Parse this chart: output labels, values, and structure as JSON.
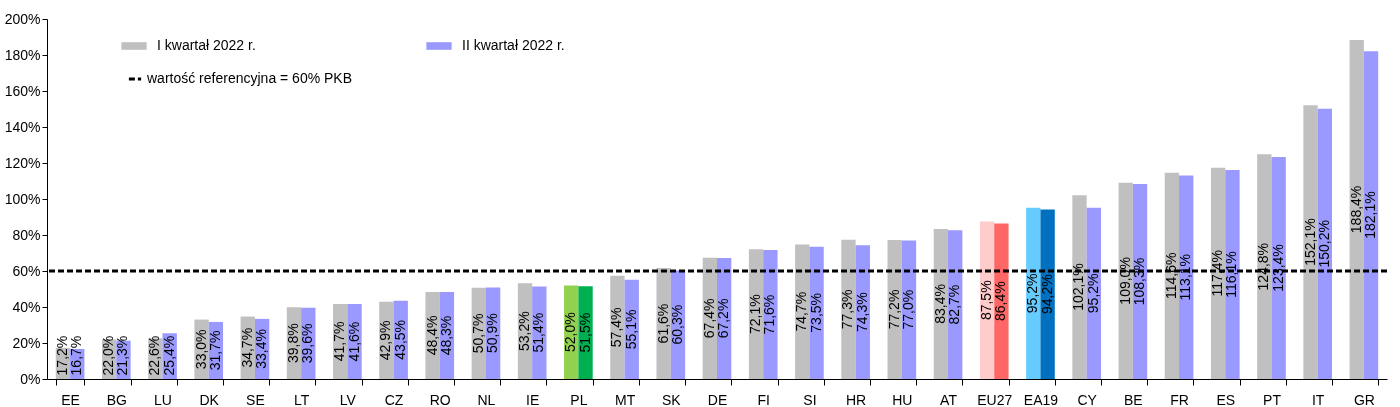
{
  "chart_data": {
    "type": "bar",
    "categories": [
      "EE",
      "BG",
      "LU",
      "DK",
      "SE",
      "LT",
      "LV",
      "CZ",
      "RO",
      "NL",
      "IE",
      "PL",
      "MT",
      "SK",
      "DE",
      "FI",
      "SI",
      "HR",
      "HU",
      "AT",
      "EU27",
      "EA19",
      "CY",
      "BE",
      "FR",
      "ES",
      "PT",
      "IT",
      "GR"
    ],
    "series": [
      {
        "name": "I kwartał 2022 r.",
        "color": "#c0c0c0",
        "colors": [
          "#c0c0c0",
          "#c0c0c0",
          "#c0c0c0",
          "#c0c0c0",
          "#c0c0c0",
          "#c0c0c0",
          "#c0c0c0",
          "#c0c0c0",
          "#c0c0c0",
          "#c0c0c0",
          "#c0c0c0",
          "#92d050",
          "#c0c0c0",
          "#c0c0c0",
          "#c0c0c0",
          "#c0c0c0",
          "#c0c0c0",
          "#c0c0c0",
          "#c0c0c0",
          "#c0c0c0",
          "#ffcccc",
          "#66ccff",
          "#c0c0c0",
          "#c0c0c0",
          "#c0c0c0",
          "#c0c0c0",
          "#c0c0c0",
          "#c0c0c0",
          "#c0c0c0"
        ],
        "values": [
          17.2,
          22.0,
          22.6,
          33.0,
          34.7,
          39.8,
          41.7,
          42.9,
          48.4,
          50.7,
          53.2,
          52.0,
          57.4,
          61.6,
          67.4,
          72.1,
          74.7,
          77.3,
          77.2,
          83.4,
          87.5,
          95.2,
          102.1,
          109.0,
          114.6,
          117.4,
          124.8,
          152.1,
          188.4
        ],
        "value_labels": [
          "17,2%",
          "22,0%",
          "22,6%",
          "33,0%",
          "34,7%",
          "39,8%",
          "41,7%",
          "42,9%",
          "48,4%",
          "50,7%",
          "53,2%",
          "52,0%",
          "57,4%",
          "61,6%",
          "67,4%",
          "72,1%",
          "74,7%",
          "77,3%",
          "77,2%",
          "83,4%",
          "87,5%",
          "95,2%",
          "102,1%",
          "109,0%",
          "114,6%",
          "117,4%",
          "124,8%",
          "152,1%",
          "188,4%"
        ]
      },
      {
        "name": "II kwartał 2022 r.",
        "color": "#9999ff",
        "colors": [
          "#9999ff",
          "#9999ff",
          "#9999ff",
          "#9999ff",
          "#9999ff",
          "#9999ff",
          "#9999ff",
          "#9999ff",
          "#9999ff",
          "#9999ff",
          "#9999ff",
          "#00b050",
          "#9999ff",
          "#9999ff",
          "#9999ff",
          "#9999ff",
          "#9999ff",
          "#9999ff",
          "#9999ff",
          "#9999ff",
          "#ff6666",
          "#0070c0",
          "#9999ff",
          "#9999ff",
          "#9999ff",
          "#9999ff",
          "#9999ff",
          "#9999ff",
          "#9999ff"
        ],
        "values": [
          16.7,
          21.3,
          25.4,
          31.7,
          33.4,
          39.6,
          41.6,
          43.5,
          48.3,
          50.9,
          51.4,
          51.5,
          55.1,
          60.3,
          67.2,
          71.6,
          73.5,
          74.3,
          77.0,
          82.7,
          86.4,
          94.2,
          95.2,
          108.3,
          113.1,
          116.1,
          123.4,
          150.2,
          182.1
        ],
        "value_labels": [
          "16,7%",
          "21,3%",
          "25,4%",
          "31,7%",
          "33,4%",
          "39,6%",
          "41,6%",
          "43,5%",
          "48,3%",
          "50,9%",
          "51,4%",
          "51,5%",
          "55,1%",
          "60,3%",
          "67,2%",
          "71,6%",
          "73,5%",
          "74,3%",
          "77,0%",
          "82,7%",
          "86,4%",
          "94,2%",
          "95,2%",
          "108,3%",
          "113,1%",
          "116,1%",
          "123,4%",
          "150,2%",
          "182,1%"
        ]
      }
    ],
    "ylim": [
      0,
      200
    ],
    "yticks": [
      {
        "value": 0,
        "label": "0%"
      },
      {
        "value": 20,
        "label": "20%"
      },
      {
        "value": 40,
        "label": "40%"
      },
      {
        "value": 60,
        "label": "60%"
      },
      {
        "value": 80,
        "label": "80%"
      },
      {
        "value": 100,
        "label": "100%"
      },
      {
        "value": 120,
        "label": "120%"
      },
      {
        "value": 140,
        "label": "140%"
      },
      {
        "value": 160,
        "label": "160%"
      },
      {
        "value": 180,
        "label": "180%"
      },
      {
        "value": 200,
        "label": "200%"
      }
    ],
    "ref_lines": [
      {
        "axis": "y",
        "value": 60,
        "label": "wartość referencyjna = 60% PKB",
        "color": "#000000",
        "line_style": "dashed"
      }
    ],
    "grid": false,
    "legend": "top left"
  }
}
